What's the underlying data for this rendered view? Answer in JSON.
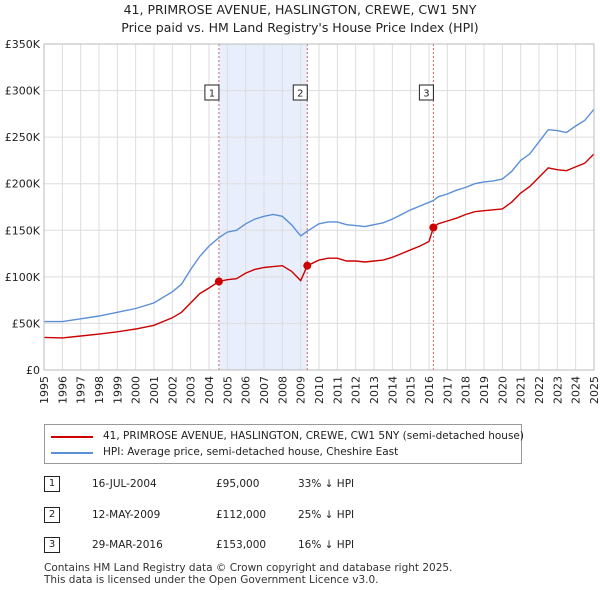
{
  "title_line1": "41, PRIMROSE AVENUE, HASLINGTON, CREWE, CW1 5NY",
  "title_line2": "Price paid vs. HM Land Registry's House Price Index (HPI)",
  "colors": {
    "property": "#cc0000",
    "hpi": "#5b8fd6",
    "shade": "#e8eefb",
    "grid": "#dddddd",
    "sale_marker": "#cc0000"
  },
  "chart_data": {
    "type": "line",
    "x_range": [
      1995,
      2025
    ],
    "ylim": [
      0,
      350000
    ],
    "y_ticks": [
      {
        "value": 0,
        "label": "£0"
      },
      {
        "value": 50000,
        "label": "£50K"
      },
      {
        "value": 100000,
        "label": "£100K"
      },
      {
        "value": 150000,
        "label": "£150K"
      },
      {
        "value": 200000,
        "label": "£200K"
      },
      {
        "value": 250000,
        "label": "£250K"
      },
      {
        "value": 300000,
        "label": "£300K"
      },
      {
        "value": 350000,
        "label": "£350K"
      }
    ],
    "x_ticks": [
      1995,
      1996,
      1997,
      1998,
      1999,
      2000,
      2001,
      2002,
      2003,
      2004,
      2005,
      2006,
      2007,
      2008,
      2009,
      2010,
      2011,
      2012,
      2013,
      2014,
      2015,
      2016,
      2017,
      2018,
      2019,
      2020,
      2021,
      2022,
      2023,
      2024,
      2025
    ],
    "shaded_ranges": [
      [
        2004.54,
        2009.36
      ]
    ],
    "series": [
      {
        "name": "41, PRIMROSE AVENUE, HASLINGTON, CREWE, CW1 5NY (semi-detached house)",
        "points": [
          [
            1995.0,
            35000
          ],
          [
            1996.0,
            34500
          ],
          [
            1997.0,
            36500
          ],
          [
            1998.0,
            38500
          ],
          [
            1999.0,
            41000
          ],
          [
            2000.0,
            44000
          ],
          [
            2001.0,
            48000
          ],
          [
            2002.0,
            56000
          ],
          [
            2002.5,
            62000
          ],
          [
            2003.0,
            72000
          ],
          [
            2003.5,
            82000
          ],
          [
            2004.0,
            88000
          ],
          [
            2004.54,
            95000
          ],
          [
            2005.0,
            97000
          ],
          [
            2005.5,
            98000
          ],
          [
            2006.0,
            104000
          ],
          [
            2006.5,
            108000
          ],
          [
            2007.0,
            110000
          ],
          [
            2007.5,
            111000
          ],
          [
            2008.0,
            112000
          ],
          [
            2008.5,
            106000
          ],
          [
            2009.0,
            96000
          ],
          [
            2009.36,
            112000
          ],
          [
            2010.0,
            118000
          ],
          [
            2010.5,
            120000
          ],
          [
            2011.0,
            120000
          ],
          [
            2011.5,
            117000
          ],
          [
            2012.0,
            117000
          ],
          [
            2012.5,
            116000
          ],
          [
            2013.0,
            117000
          ],
          [
            2013.5,
            118000
          ],
          [
            2014.0,
            121000
          ],
          [
            2014.5,
            125000
          ],
          [
            2015.0,
            129000
          ],
          [
            2015.5,
            133000
          ],
          [
            2016.0,
            138000
          ],
          [
            2016.24,
            153000
          ],
          [
            2016.5,
            157000
          ],
          [
            2017.0,
            160000
          ],
          [
            2017.5,
            163000
          ],
          [
            2018.0,
            167000
          ],
          [
            2018.5,
            170000
          ],
          [
            2019.0,
            171000
          ],
          [
            2019.5,
            172000
          ],
          [
            2020.0,
            173000
          ],
          [
            2020.5,
            180000
          ],
          [
            2021.0,
            190000
          ],
          [
            2021.5,
            197000
          ],
          [
            2022.0,
            207000
          ],
          [
            2022.5,
            217000
          ],
          [
            2023.0,
            215000
          ],
          [
            2023.5,
            214000
          ],
          [
            2024.0,
            218000
          ],
          [
            2024.5,
            222000
          ],
          [
            2025.0,
            232000
          ]
        ]
      },
      {
        "name": "HPI: Average price, semi-detached house, Cheshire East",
        "points": [
          [
            1995.0,
            52000
          ],
          [
            1996.0,
            52000
          ],
          [
            1997.0,
            55000
          ],
          [
            1998.0,
            58000
          ],
          [
            1999.0,
            62000
          ],
          [
            2000.0,
            66000
          ],
          [
            2001.0,
            72000
          ],
          [
            2002.0,
            84000
          ],
          [
            2002.5,
            92000
          ],
          [
            2003.0,
            108000
          ],
          [
            2003.5,
            122000
          ],
          [
            2004.0,
            133000
          ],
          [
            2004.54,
            142000
          ],
          [
            2005.0,
            148000
          ],
          [
            2005.5,
            150000
          ],
          [
            2006.0,
            157000
          ],
          [
            2006.5,
            162000
          ],
          [
            2007.0,
            165000
          ],
          [
            2007.5,
            167000
          ],
          [
            2008.0,
            165000
          ],
          [
            2008.5,
            156000
          ],
          [
            2009.0,
            144000
          ],
          [
            2009.36,
            149000
          ],
          [
            2010.0,
            157000
          ],
          [
            2010.5,
            159000
          ],
          [
            2011.0,
            159000
          ],
          [
            2011.5,
            156000
          ],
          [
            2012.0,
            155000
          ],
          [
            2012.5,
            154000
          ],
          [
            2013.0,
            156000
          ],
          [
            2013.5,
            158000
          ],
          [
            2014.0,
            162000
          ],
          [
            2014.5,
            167000
          ],
          [
            2015.0,
            172000
          ],
          [
            2015.5,
            176000
          ],
          [
            2016.0,
            180000
          ],
          [
            2016.24,
            182000
          ],
          [
            2016.5,
            186000
          ],
          [
            2017.0,
            189000
          ],
          [
            2017.5,
            193000
          ],
          [
            2018.0,
            196000
          ],
          [
            2018.5,
            200000
          ],
          [
            2019.0,
            202000
          ],
          [
            2019.5,
            203000
          ],
          [
            2020.0,
            205000
          ],
          [
            2020.5,
            213000
          ],
          [
            2021.0,
            225000
          ],
          [
            2021.5,
            232000
          ],
          [
            2022.0,
            245000
          ],
          [
            2022.5,
            258000
          ],
          [
            2023.0,
            257000
          ],
          [
            2023.5,
            255000
          ],
          [
            2024.0,
            262000
          ],
          [
            2024.5,
            268000
          ],
          [
            2025.0,
            280000
          ]
        ]
      }
    ],
    "sales": [
      {
        "num": "1",
        "x": 2004.54,
        "price": 95000
      },
      {
        "num": "2",
        "x": 2009.36,
        "price": 112000
      },
      {
        "num": "3",
        "x": 2016.24,
        "price": 153000
      }
    ]
  },
  "legend": {
    "property": "41, PRIMROSE AVENUE, HASLINGTON, CREWE, CW1 5NY (semi-detached house)",
    "hpi": "HPI: Average price, semi-detached house, Cheshire East"
  },
  "sales_table": [
    {
      "num": "1",
      "date": "16-JUL-2004",
      "price": "£95,000",
      "hpi": "33% ↓ HPI"
    },
    {
      "num": "2",
      "date": "12-MAY-2009",
      "price": "£112,000",
      "hpi": "25% ↓ HPI"
    },
    {
      "num": "3",
      "date": "29-MAR-2016",
      "price": "£153,000",
      "hpi": "16% ↓ HPI"
    }
  ],
  "footer_line1": "Contains HM Land Registry data © Crown copyright and database right 2025.",
  "footer_line2": "This data is licensed under the Open Government Licence v3.0."
}
